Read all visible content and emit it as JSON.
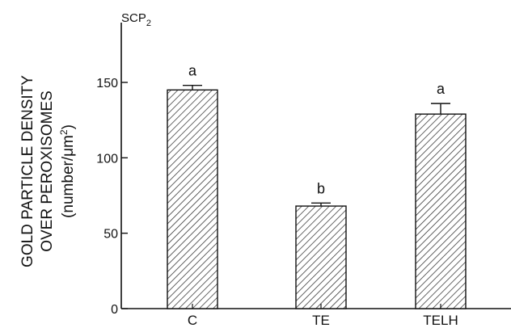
{
  "colors": {
    "ink": "#111111",
    "hatch": "#222222",
    "background": "#ffffff"
  },
  "chart_data": {
    "type": "bar",
    "title": "SCP",
    "title_subscript": "2",
    "ylabel_lines": [
      "GOLD PARTICLE DENSITY",
      "OVER PEROXISOMES"
    ],
    "ylabel_unit_prefix": "(number/",
    "ylabel_unit_mu": "μ",
    "ylabel_unit_base": "m",
    "ylabel_unit_sup": "2",
    "ylabel_unit_suffix": ")",
    "ylim": [
      0,
      200
    ],
    "yticks": [
      0,
      50,
      100,
      150
    ],
    "categories": [
      "C",
      "TE",
      "TELH"
    ],
    "values": [
      145,
      68,
      129
    ],
    "errors": [
      3,
      2,
      7
    ],
    "significance": [
      "a",
      "b",
      "a"
    ],
    "fill": "hatched",
    "grid": false
  }
}
